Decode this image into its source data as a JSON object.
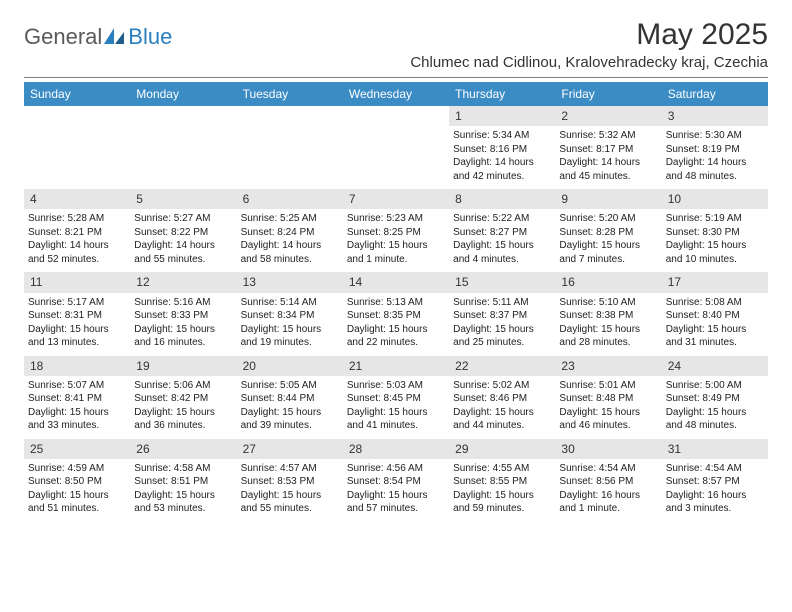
{
  "logo": {
    "text1": "General",
    "text2": "Blue"
  },
  "title": "May 2025",
  "location": "Chlumec nad Cidlinou, Kralovehradecky kraj, Czechia",
  "colors": {
    "header_bg": "#3b8bc5",
    "header_text": "#ffffff",
    "daynum_bg": "#e6e6e6",
    "body_text": "#222222",
    "logo_gray": "#5a5a5a",
    "logo_blue": "#2a7fbf",
    "page_bg": "#ffffff",
    "divider": "#808080"
  },
  "typography": {
    "title_fontsize": 30,
    "location_fontsize": 15,
    "dayheader_fontsize": 12,
    "daynum_fontsize": 12,
    "cell_fontsize": 10,
    "logo_fontsize": 22
  },
  "dayNames": [
    "Sunday",
    "Monday",
    "Tuesday",
    "Wednesday",
    "Thursday",
    "Friday",
    "Saturday"
  ],
  "weeks": [
    [
      null,
      null,
      null,
      null,
      {
        "n": "1",
        "sr": "5:34 AM",
        "ss": "8:16 PM",
        "dl": "14 hours and 42 minutes."
      },
      {
        "n": "2",
        "sr": "5:32 AM",
        "ss": "8:17 PM",
        "dl": "14 hours and 45 minutes."
      },
      {
        "n": "3",
        "sr": "5:30 AM",
        "ss": "8:19 PM",
        "dl": "14 hours and 48 minutes."
      }
    ],
    [
      {
        "n": "4",
        "sr": "5:28 AM",
        "ss": "8:21 PM",
        "dl": "14 hours and 52 minutes."
      },
      {
        "n": "5",
        "sr": "5:27 AM",
        "ss": "8:22 PM",
        "dl": "14 hours and 55 minutes."
      },
      {
        "n": "6",
        "sr": "5:25 AM",
        "ss": "8:24 PM",
        "dl": "14 hours and 58 minutes."
      },
      {
        "n": "7",
        "sr": "5:23 AM",
        "ss": "8:25 PM",
        "dl": "15 hours and 1 minute."
      },
      {
        "n": "8",
        "sr": "5:22 AM",
        "ss": "8:27 PM",
        "dl": "15 hours and 4 minutes."
      },
      {
        "n": "9",
        "sr": "5:20 AM",
        "ss": "8:28 PM",
        "dl": "15 hours and 7 minutes."
      },
      {
        "n": "10",
        "sr": "5:19 AM",
        "ss": "8:30 PM",
        "dl": "15 hours and 10 minutes."
      }
    ],
    [
      {
        "n": "11",
        "sr": "5:17 AM",
        "ss": "8:31 PM",
        "dl": "15 hours and 13 minutes."
      },
      {
        "n": "12",
        "sr": "5:16 AM",
        "ss": "8:33 PM",
        "dl": "15 hours and 16 minutes."
      },
      {
        "n": "13",
        "sr": "5:14 AM",
        "ss": "8:34 PM",
        "dl": "15 hours and 19 minutes."
      },
      {
        "n": "14",
        "sr": "5:13 AM",
        "ss": "8:35 PM",
        "dl": "15 hours and 22 minutes."
      },
      {
        "n": "15",
        "sr": "5:11 AM",
        "ss": "8:37 PM",
        "dl": "15 hours and 25 minutes."
      },
      {
        "n": "16",
        "sr": "5:10 AM",
        "ss": "8:38 PM",
        "dl": "15 hours and 28 minutes."
      },
      {
        "n": "17",
        "sr": "5:08 AM",
        "ss": "8:40 PM",
        "dl": "15 hours and 31 minutes."
      }
    ],
    [
      {
        "n": "18",
        "sr": "5:07 AM",
        "ss": "8:41 PM",
        "dl": "15 hours and 33 minutes."
      },
      {
        "n": "19",
        "sr": "5:06 AM",
        "ss": "8:42 PM",
        "dl": "15 hours and 36 minutes."
      },
      {
        "n": "20",
        "sr": "5:05 AM",
        "ss": "8:44 PM",
        "dl": "15 hours and 39 minutes."
      },
      {
        "n": "21",
        "sr": "5:03 AM",
        "ss": "8:45 PM",
        "dl": "15 hours and 41 minutes."
      },
      {
        "n": "22",
        "sr": "5:02 AM",
        "ss": "8:46 PM",
        "dl": "15 hours and 44 minutes."
      },
      {
        "n": "23",
        "sr": "5:01 AM",
        "ss": "8:48 PM",
        "dl": "15 hours and 46 minutes."
      },
      {
        "n": "24",
        "sr": "5:00 AM",
        "ss": "8:49 PM",
        "dl": "15 hours and 48 minutes."
      }
    ],
    [
      {
        "n": "25",
        "sr": "4:59 AM",
        "ss": "8:50 PM",
        "dl": "15 hours and 51 minutes."
      },
      {
        "n": "26",
        "sr": "4:58 AM",
        "ss": "8:51 PM",
        "dl": "15 hours and 53 minutes."
      },
      {
        "n": "27",
        "sr": "4:57 AM",
        "ss": "8:53 PM",
        "dl": "15 hours and 55 minutes."
      },
      {
        "n": "28",
        "sr": "4:56 AM",
        "ss": "8:54 PM",
        "dl": "15 hours and 57 minutes."
      },
      {
        "n": "29",
        "sr": "4:55 AM",
        "ss": "8:55 PM",
        "dl": "15 hours and 59 minutes."
      },
      {
        "n": "30",
        "sr": "4:54 AM",
        "ss": "8:56 PM",
        "dl": "16 hours and 1 minute."
      },
      {
        "n": "31",
        "sr": "4:54 AM",
        "ss": "8:57 PM",
        "dl": "16 hours and 3 minutes."
      }
    ]
  ],
  "labels": {
    "sunrise": "Sunrise:",
    "sunset": "Sunset:",
    "daylight": "Daylight:"
  }
}
